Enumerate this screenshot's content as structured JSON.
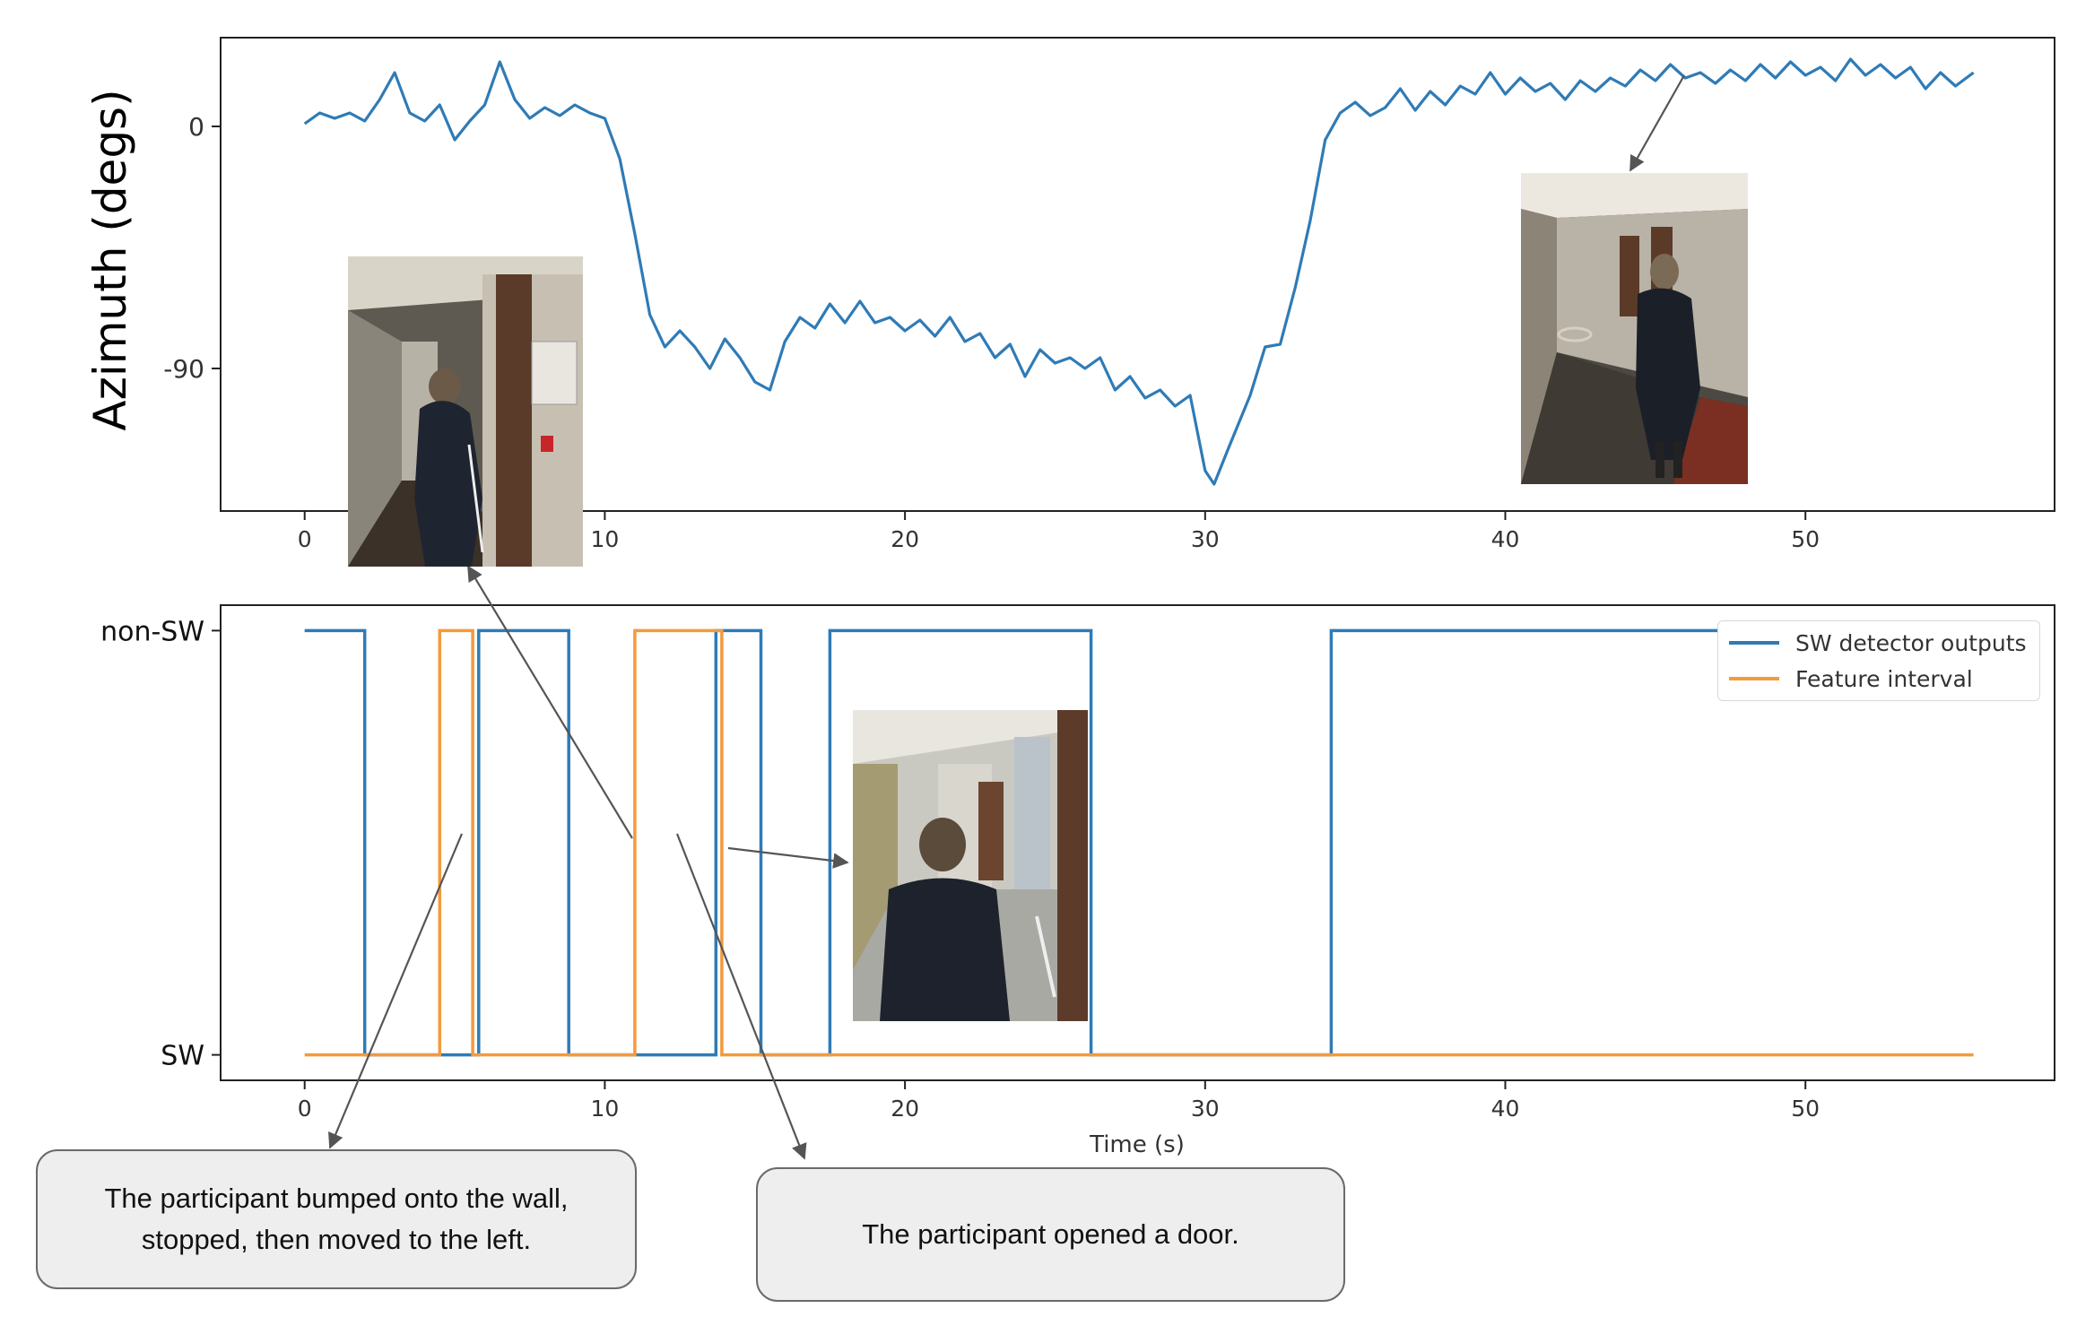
{
  "chart_data": [
    {
      "type": "line",
      "ylabel": "Azimuth (degs)",
      "xlabel": "",
      "x_ticks": [
        0,
        10,
        20,
        30,
        40,
        50
      ],
      "y_ticks": [
        0,
        -90
      ],
      "y_tick_labels": [
        "0",
        "-90"
      ],
      "xlim": [
        -2.8,
        58.3
      ],
      "ylim": [
        -143,
        33
      ],
      "grid": false,
      "series": [
        {
          "color": "#2f7bb6",
          "x": [
            0,
            0.5,
            1,
            1.5,
            2,
            2.5,
            3,
            3.5,
            4,
            4.5,
            5,
            5.5,
            6,
            6.5,
            7,
            7.5,
            8,
            8.5,
            9,
            9.5,
            10,
            10.5,
            11,
            11.5,
            12,
            12.5,
            13,
            13.5,
            14,
            14.5,
            15,
            15.5,
            16,
            16.5,
            17,
            17.5,
            18,
            18.5,
            19,
            19.5,
            20,
            20.5,
            21,
            21.5,
            22,
            22.5,
            23,
            23.5,
            24,
            24.5,
            25,
            25.5,
            26,
            26.5,
            27,
            27.5,
            28,
            28.5,
            29,
            29.5,
            30,
            30.3,
            30.8,
            31.5,
            32,
            32.5,
            33,
            33.5,
            34,
            34.5,
            35,
            35.5,
            36,
            36.5,
            37,
            37.5,
            38,
            38.5,
            39,
            39.5,
            40,
            40.5,
            41,
            41.5,
            42,
            42.5,
            43,
            43.5,
            44,
            44.5,
            45,
            45.5,
            46,
            46.5,
            47,
            47.5,
            48,
            48.5,
            49,
            49.5,
            50,
            50.5,
            51,
            51.5,
            52,
            52.5,
            53,
            53.5,
            54,
            54.5,
            55,
            55.6
          ],
          "y": [
            1,
            5,
            3,
            5,
            2,
            10,
            20,
            5,
            2,
            8,
            -5,
            2,
            8,
            24,
            10,
            3,
            7,
            4,
            8,
            5,
            3,
            -12,
            -40,
            -70,
            -82,
            -76,
            -82,
            -90,
            -79,
            -86,
            -95,
            -98,
            -80,
            -71,
            -75,
            -66,
            -73,
            -65,
            -73,
            -71,
            -76,
            -72,
            -78,
            -71,
            -80,
            -77,
            -86,
            -81,
            -93,
            -83,
            -88,
            -86,
            -90,
            -86,
            -98,
            -93,
            -101,
            -98,
            -104,
            -100,
            -128,
            -133,
            -119,
            -100,
            -82,
            -81,
            -60,
            -35,
            -5,
            5,
            9,
            4,
            7,
            14,
            6,
            13,
            8,
            15,
            12,
            20,
            12,
            18,
            13,
            16,
            10,
            17,
            13,
            18,
            15,
            21,
            17,
            23,
            18,
            20,
            16,
            21,
            17,
            23,
            18,
            24,
            19,
            22,
            17,
            25,
            19,
            23,
            18,
            22,
            14,
            20,
            15,
            20
          ]
        }
      ]
    },
    {
      "type": "line",
      "xlabel": "Time (s)",
      "ylabel": "",
      "x_ticks": [
        0,
        10,
        20,
        30,
        40,
        50
      ],
      "y_tick_labels": [
        "non-SW",
        "SW"
      ],
      "xlim": [
        -2.8,
        58.3
      ],
      "ylim": [
        -0.06,
        1.06
      ],
      "grid": false,
      "legend": "top-right",
      "series": [
        {
          "name": "SW detector outputs",
          "color": "#2f7bb6",
          "x": [
            0,
            2.0,
            2.0,
            5.8,
            5.8,
            8.8,
            8.8,
            13.7,
            13.7,
            15.2,
            15.2,
            17.5,
            17.5,
            26.2,
            26.2,
            34.2,
            34.2,
            55.6
          ],
          "y": [
            1,
            1,
            0,
            0,
            1,
            1,
            0,
            0,
            1,
            1,
            0,
            0,
            1,
            1,
            0,
            0,
            1,
            1
          ]
        },
        {
          "name": "Feature interval",
          "color": "#f39a3c",
          "x": [
            0,
            4.5,
            4.5,
            5.6,
            5.6,
            11.0,
            11.0,
            13.9,
            13.9,
            55.6
          ],
          "y": [
            0,
            0,
            1,
            1,
            0,
            0,
            1,
            1,
            0,
            0
          ]
        }
      ]
    }
  ],
  "callouts": {
    "bump": "The participant bumped onto the wall, stopped, then moved to the left.",
    "door": "The participant opened a door."
  },
  "photos": [
    "hallway-door-photo",
    "corridor-walking-photo",
    "door-opening-photo"
  ]
}
